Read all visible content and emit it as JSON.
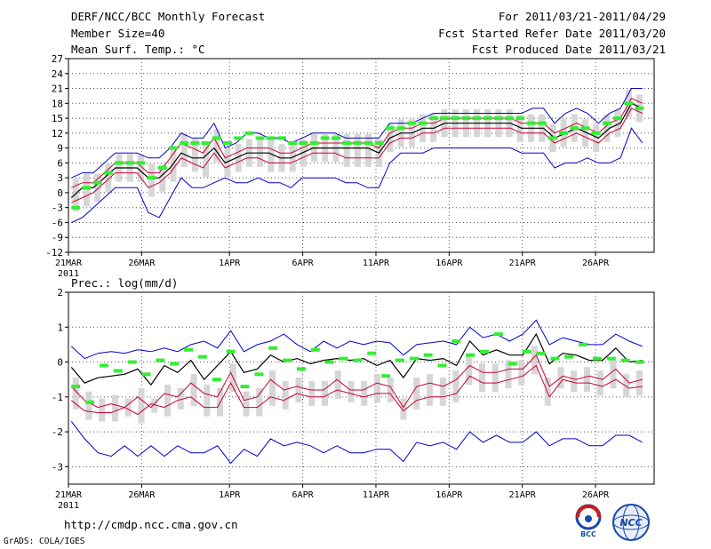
{
  "header": {
    "title": "DERF/NCC/BCC Monthly Forecast",
    "member_size": "Member Size=40",
    "variable": "Mean Surf. Temp.: °C",
    "for_period": "For 2011/03/21-2011/04/29",
    "started_date": "Fcst Started Refer Date 2011/03/20",
    "produced_date": "Fcst Produced Date 2011/03/21"
  },
  "footer": {
    "url": "http://cmdp.ncc.cma.gov.cn",
    "grads": "GrADS: COLA/IGES",
    "logo_bcc": "BCC",
    "logo_ncc": "NCC"
  },
  "colors": {
    "max_min": "#0000cc",
    "mean": "#000000",
    "range": "#cc0033",
    "obs": "#33ee33",
    "box": "#d6d6d6",
    "model": "#cc6600"
  },
  "chart_data": [
    {
      "type": "line",
      "name": "temperature",
      "title": "Mean Surf. Temp.: °C",
      "x_ticks": [
        "21MAR",
        "26MAR",
        "1APR",
        "6APR",
        "11APR",
        "16APR",
        "21APR",
        "26APR"
      ],
      "x_tick_days": [
        0,
        5,
        11,
        16,
        21,
        26,
        31,
        36
      ],
      "year_label": "2011",
      "ylim": [
        -12,
        27
      ],
      "yticks": [
        -12,
        -9,
        -6,
        -3,
        0,
        3,
        6,
        9,
        12,
        15,
        18,
        21,
        24,
        27
      ],
      "grid": true,
      "days": 40,
      "series": [
        {
          "name": "max",
          "color": "#0000cc",
          "values": [
            3,
            4,
            4,
            6,
            8,
            8,
            8,
            7,
            7,
            9,
            12,
            11,
            11,
            14,
            9,
            10,
            12,
            12,
            11,
            11,
            10,
            11,
            12,
            12,
            12,
            11,
            11,
            11,
            11,
            14,
            14,
            14,
            15,
            16,
            16,
            16,
            16,
            16,
            16,
            16,
            16,
            16,
            17,
            17,
            14,
            16,
            17,
            16,
            14,
            16,
            17,
            21,
            21
          ]
        },
        {
          "name": "upper",
          "color": "#cc0033",
          "values": [
            1,
            2,
            2,
            4,
            6,
            6,
            6,
            4,
            4,
            7,
            10,
            9,
            8,
            11,
            7,
            8,
            9,
            9,
            9,
            8,
            8,
            9,
            10,
            10,
            10,
            10,
            10,
            10,
            9,
            12,
            13,
            13,
            14,
            14,
            15,
            15,
            15,
            15,
            15,
            15,
            15,
            14,
            14,
            14,
            12,
            13,
            14,
            13,
            12,
            14,
            15,
            19,
            18
          ]
        },
        {
          "name": "mean",
          "color": "#000000",
          "values": [
            -1,
            1,
            1,
            3,
            5,
            5,
            5,
            3,
            3,
            5,
            8,
            7,
            7,
            9,
            6,
            7,
            8,
            8,
            8,
            7,
            7,
            8,
            9,
            9,
            9,
            9,
            9,
            9,
            8,
            11,
            12,
            12,
            13,
            13,
            14,
            14,
            14,
            14,
            14,
            14,
            14,
            13,
            13,
            13,
            11,
            12,
            13,
            12,
            11,
            13,
            14,
            18,
            17
          ]
        },
        {
          "name": "lower",
          "color": "#cc0033",
          "values": [
            -2,
            -1,
            0,
            2,
            4,
            4,
            4,
            1,
            2,
            4,
            7,
            6,
            5,
            8,
            5,
            6,
            7,
            7,
            6,
            6,
            6,
            7,
            8,
            8,
            8,
            7,
            7,
            7,
            7,
            10,
            11,
            11,
            12,
            12,
            13,
            13,
            13,
            13,
            13,
            13,
            13,
            12,
            12,
            12,
            10,
            11,
            12,
            11,
            10,
            12,
            13,
            17,
            16
          ]
        },
        {
          "name": "min",
          "color": "#0000cc",
          "values": [
            -6,
            -5,
            -3,
            -1,
            1,
            1,
            1,
            -4,
            -5,
            -1,
            3,
            1,
            1,
            2,
            3,
            2,
            2,
            3,
            2,
            2,
            1,
            3,
            3,
            3,
            3,
            2,
            2,
            1,
            1,
            6,
            8,
            8,
            8,
            9,
            9,
            9,
            9,
            9,
            9,
            9,
            9,
            8,
            8,
            8,
            5,
            6,
            6,
            7,
            6,
            6,
            7,
            13,
            10
          ]
        },
        {
          "name": "obs",
          "color": "#33ee33",
          "values": [
            -3,
            1,
            2,
            4,
            6,
            6,
            6,
            3,
            5,
            9,
            10,
            10,
            10,
            11,
            10,
            11,
            12,
            11,
            11,
            11,
            10,
            10,
            10,
            11,
            11,
            10,
            10,
            10,
            10,
            13,
            13,
            14,
            14,
            15,
            15,
            15,
            15,
            15,
            15,
            15,
            15,
            15,
            14,
            14,
            11,
            12,
            13,
            13,
            12,
            14,
            15,
            18,
            17
          ]
        }
      ]
    },
    {
      "type": "line",
      "name": "precipitation",
      "title": "Prec.: log(mm/d)",
      "x_ticks": [
        "21MAR",
        "26MAR",
        "1APR",
        "6APR",
        "11APR",
        "16APR",
        "21APR",
        "26APR"
      ],
      "x_tick_days": [
        0,
        5,
        11,
        16,
        21,
        26,
        31,
        36
      ],
      "year_label": "2011",
      "ylim": [
        -3.5,
        2
      ],
      "yticks": [
        -3,
        -2,
        -1,
        0,
        1,
        2
      ],
      "grid": true,
      "days": 40,
      "series": [
        {
          "name": "max",
          "color": "#0000cc",
          "values": [
            0.45,
            0.1,
            0.25,
            0.3,
            0.25,
            0.35,
            0.3,
            0.4,
            0.3,
            0.5,
            0.6,
            0.4,
            0.9,
            0.3,
            0.5,
            0.6,
            0.8,
            0.5,
            0.3,
            0.6,
            0.4,
            0.6,
            0.5,
            0.6,
            0.55,
            0.2,
            0.5,
            0.55,
            0.6,
            0.5,
            1.0,
            0.7,
            0.8,
            0.6,
            0.8,
            1.2,
            0.5,
            0.7,
            0.6,
            0.5,
            0.5,
            0.8,
            0.6,
            0.45
          ]
        },
        {
          "name": "upper",
          "color": "#cc0033",
          "values": [
            -0.7,
            -1.1,
            -1.3,
            -1.2,
            -1.3,
            -1.0,
            -1.3,
            -0.9,
            -1.0,
            -0.6,
            -0.9,
            -1.0,
            -0.3,
            -1.1,
            -1.0,
            -0.5,
            -0.8,
            -0.7,
            -0.8,
            -0.8,
            -0.5,
            -0.8,
            -0.8,
            -0.6,
            -0.7,
            -1.3,
            -0.7,
            -0.6,
            -0.7,
            -0.5,
            -0.1,
            -0.3,
            -0.3,
            -0.2,
            -0.2,
            0.2,
            -0.7,
            -0.4,
            -0.5,
            -0.4,
            -0.5,
            -0.2,
            -0.6,
            -0.5
          ]
        },
        {
          "name": "mean",
          "color": "#000000",
          "values": [
            -0.15,
            -0.6,
            -0.45,
            -0.4,
            -0.35,
            -0.2,
            -0.65,
            -0.1,
            -0.3,
            0.05,
            -0.5,
            -0.1,
            0.3,
            -0.3,
            -0.2,
            0.2,
            0.0,
            0.1,
            -0.05,
            0.05,
            0.1,
            0.05,
            0.1,
            -0.1,
            0.05,
            -0.45,
            0.1,
            0.05,
            0.1,
            -0.1,
            0.6,
            0.2,
            0.35,
            0.2,
            0.2,
            0.8,
            -0.05,
            0.25,
            0.2,
            0.05,
            0.05,
            0.4,
            0.0,
            0.05
          ]
        },
        {
          "name": "lower",
          "color": "#cc0033",
          "values": [
            -1.1,
            -1.4,
            -1.45,
            -1.45,
            -1.3,
            -1.5,
            -1.2,
            -1.3,
            -1.1,
            -1.0,
            -1.3,
            -1.3,
            -0.6,
            -1.3,
            -1.3,
            -1.0,
            -1.1,
            -0.9,
            -1.0,
            -1.0,
            -0.8,
            -0.9,
            -1.0,
            -0.9,
            -0.9,
            -1.4,
            -1.1,
            -1.0,
            -1.0,
            -0.9,
            -0.4,
            -0.6,
            -0.6,
            -0.5,
            -0.4,
            -0.1,
            -1.0,
            -0.5,
            -0.6,
            -0.6,
            -0.7,
            -0.5,
            -0.75,
            -0.7
          ]
        },
        {
          "name": "min",
          "color": "#0000cc",
          "values": [
            -1.7,
            -2.2,
            -2.6,
            -2.7,
            -2.4,
            -2.7,
            -2.4,
            -2.7,
            -2.4,
            -2.6,
            -2.6,
            -2.4,
            -2.9,
            -2.5,
            -2.7,
            -2.2,
            -2.4,
            -2.3,
            -2.4,
            -2.6,
            -2.4,
            -2.6,
            -2.6,
            -2.5,
            -2.5,
            -2.85,
            -2.3,
            -2.4,
            -2.3,
            -2.5,
            -2.0,
            -2.3,
            -2.1,
            -2.3,
            -2.3,
            -2.0,
            -2.4,
            -2.2,
            -2.2,
            -2.4,
            -2.4,
            -2.1,
            -2.1,
            -2.3
          ]
        },
        {
          "name": "obs",
          "color": "#33ee33",
          "values": [
            -0.7,
            -1.15,
            -0.1,
            -0.25,
            0.0,
            -0.35,
            0.05,
            -0.05,
            0.35,
            0.15,
            -0.5,
            0.3,
            -0.7,
            -0.35,
            0.4,
            0.05,
            -0.2,
            0.35,
            0.0,
            0.1,
            0.05,
            0.25,
            -0.4,
            0.05,
            0.1,
            0.2,
            -0.1,
            0.6,
            0.2,
            0.3,
            0.8,
            -0.05,
            0.3,
            0.25,
            0.1,
            0.15,
            0.5,
            0.1,
            0.1,
            0.05,
            0.0
          ]
        }
      ]
    }
  ]
}
